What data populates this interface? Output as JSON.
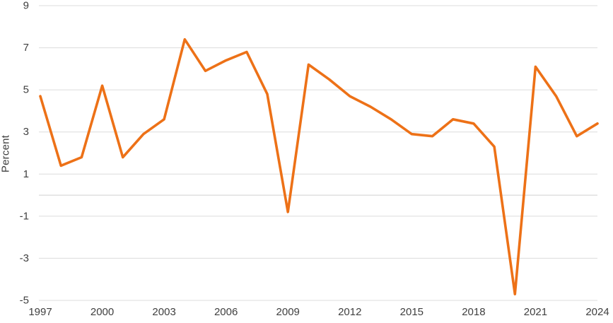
{
  "chart_data": {
    "type": "line",
    "title": "",
    "xlabel": "",
    "ylabel": "Percent",
    "x": [
      1997,
      1998,
      1999,
      2000,
      2001,
      2002,
      2003,
      2004,
      2005,
      2006,
      2007,
      2008,
      2009,
      2010,
      2011,
      2012,
      2013,
      2014,
      2015,
      2016,
      2017,
      2018,
      2019,
      2020,
      2021,
      2022,
      2023,
      2024
    ],
    "values": [
      4.7,
      1.4,
      1.8,
      5.2,
      1.8,
      2.9,
      3.6,
      7.4,
      5.9,
      6.4,
      6.8,
      4.8,
      -0.8,
      6.2,
      5.5,
      4.7,
      4.2,
      3.6,
      2.9,
      2.8,
      3.6,
      3.4,
      2.3,
      -4.7,
      6.1,
      4.7,
      2.8,
      3.4
    ],
    "x_tick_labels": [
      "1997",
      "2000",
      "2003",
      "2006",
      "2009",
      "2012",
      "2015",
      "2018",
      "2021",
      "2024"
    ],
    "x_tick_years": [
      1997,
      2000,
      2003,
      2006,
      2009,
      2012,
      2015,
      2018,
      2021,
      2024
    ],
    "y_tick_labels": [
      "9",
      "7",
      "5",
      "3",
      "1",
      "-1",
      "-3",
      "-5"
    ],
    "y_tick_values": [
      9,
      7,
      5,
      3,
      1,
      -1,
      -3,
      -5
    ],
    "gridline_values": [
      9,
      7,
      5,
      3,
      1,
      0,
      -1,
      -3,
      -5
    ],
    "ylim": [
      -5,
      9
    ],
    "grid": true,
    "legend": "none",
    "colors": {
      "line": "#ED7117",
      "gridline": "#dcdcdc",
      "zero_line": "#cfcfcf",
      "tick_label": "#3f3f3f"
    }
  }
}
